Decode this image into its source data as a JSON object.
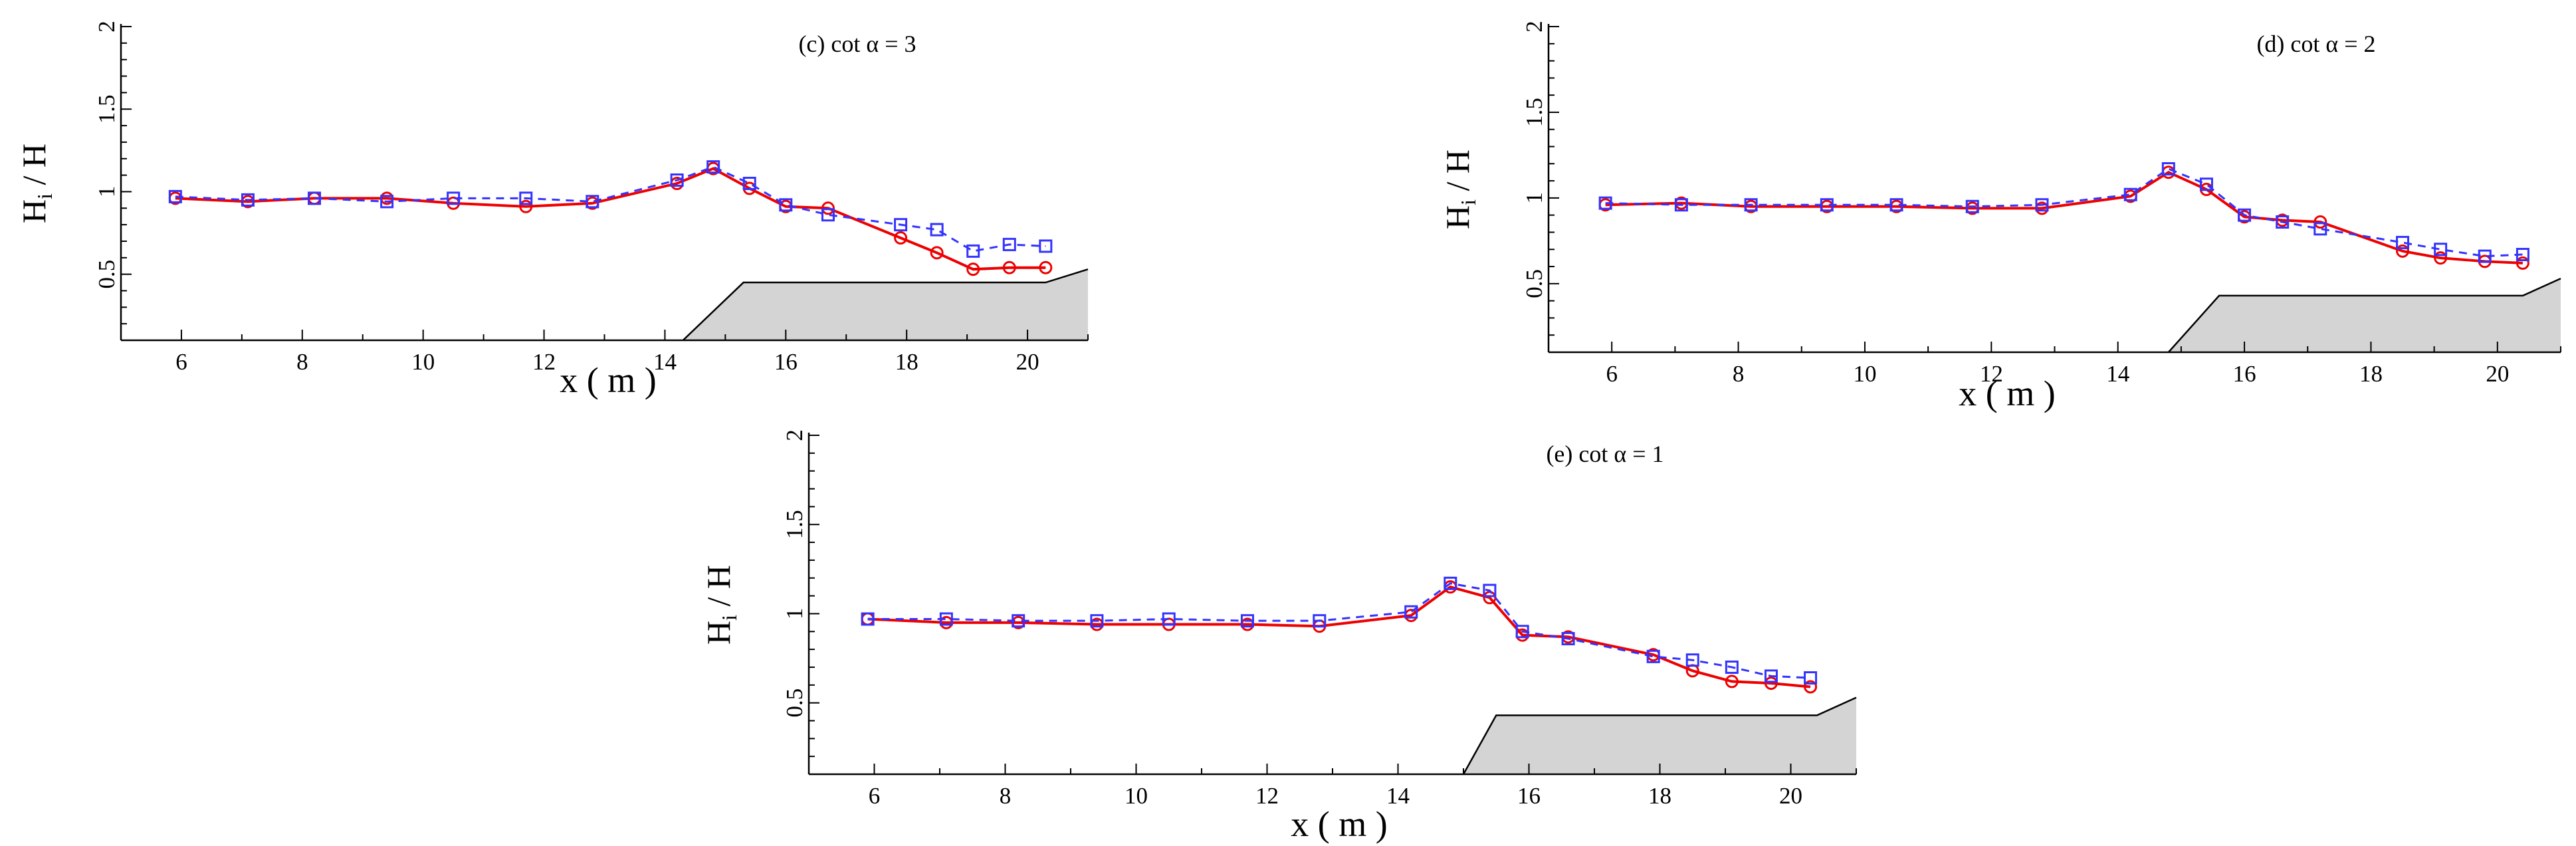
{
  "colors": {
    "red": "#ee0000",
    "blue": "#3333ff",
    "bathymetry_fill": "#d4d4d4",
    "bathymetry_edge": "#000000"
  },
  "chart_data": [
    {
      "type": "line",
      "title": "(c)     cot α = 3",
      "xlabel": "x ( m )",
      "ylabel": {
        "main": "H",
        "subscript": "i",
        "rest": " / H"
      },
      "xlim": [
        5,
        21
      ],
      "ylim": [
        0.1,
        2
      ],
      "xticks": [
        6,
        8,
        10,
        12,
        14,
        16,
        18,
        20
      ],
      "yticks": [
        0.5,
        1,
        1.5,
        2
      ],
      "ytick_labels": [
        "0.5",
        "1",
        "1.5",
        "2"
      ],
      "series": [
        {
          "name": "red-circles",
          "marker": "circle",
          "style": "solid",
          "x": [
            5.9,
            7.1,
            8.2,
            9.4,
            10.5,
            11.7,
            12.8,
            14.2,
            14.8,
            15.4,
            16.0,
            16.7,
            17.9,
            18.5,
            19.1,
            19.7,
            20.3
          ],
          "y": [
            0.96,
            0.94,
            0.96,
            0.96,
            0.93,
            0.91,
            0.93,
            1.05,
            1.14,
            1.02,
            0.91,
            0.9,
            0.72,
            0.63,
            0.53,
            0.54,
            0.54
          ]
        },
        {
          "name": "blue-squares",
          "marker": "square",
          "style": "dashed",
          "x": [
            5.9,
            7.1,
            8.2,
            9.4,
            10.5,
            11.7,
            12.8,
            14.2,
            14.8,
            15.4,
            16.0,
            16.7,
            17.9,
            18.5,
            19.1,
            19.7,
            20.3
          ],
          "y": [
            0.97,
            0.95,
            0.96,
            0.94,
            0.96,
            0.96,
            0.94,
            1.07,
            1.15,
            1.05,
            0.92,
            0.86,
            0.8,
            0.77,
            0.64,
            0.68,
            0.67
          ]
        }
      ],
      "bathymetry": {
        "x": [
          14.3,
          15.3,
          20.3,
          21
        ],
        "y": [
          0.1,
          0.45,
          0.45,
          0.53
        ]
      }
    },
    {
      "type": "line",
      "title": "(d)     cot α = 2",
      "xlabel": "x ( m )",
      "ylabel": {
        "main": "H",
        "subscript": "i",
        "rest": " / H"
      },
      "xlim": [
        5,
        21
      ],
      "ylim": [
        0.1,
        2
      ],
      "xticks": [
        6,
        8,
        10,
        12,
        14,
        16,
        18,
        20
      ],
      "yticks": [
        0.5,
        1,
        1.5,
        2
      ],
      "ytick_labels": [
        "0.5",
        "1",
        "1.5",
        "2"
      ],
      "series": [
        {
          "name": "red-circles",
          "marker": "circle",
          "style": "solid",
          "x": [
            5.9,
            7.1,
            8.2,
            9.4,
            10.5,
            11.7,
            12.8,
            14.2,
            14.8,
            15.4,
            16.0,
            16.6,
            17.2,
            18.5,
            19.1,
            19.8,
            20.4
          ],
          "y": [
            0.96,
            0.97,
            0.95,
            0.95,
            0.95,
            0.94,
            0.94,
            1.01,
            1.15,
            1.05,
            0.89,
            0.87,
            0.86,
            0.69,
            0.65,
            0.63,
            0.62
          ]
        },
        {
          "name": "blue-squares",
          "marker": "square",
          "style": "dashed",
          "x": [
            5.9,
            7.1,
            8.2,
            9.4,
            10.5,
            11.7,
            12.8,
            14.2,
            14.8,
            15.4,
            16.0,
            16.6,
            17.2,
            18.5,
            19.1,
            19.8,
            20.4
          ],
          "y": [
            0.97,
            0.96,
            0.96,
            0.96,
            0.96,
            0.95,
            0.96,
            1.02,
            1.17,
            1.08,
            0.9,
            0.86,
            0.82,
            0.74,
            0.7,
            0.66,
            0.67
          ]
        }
      ],
      "bathymetry": {
        "x": [
          14.8,
          15.6,
          20.4,
          21
        ],
        "y": [
          0.1,
          0.43,
          0.43,
          0.53
        ]
      }
    },
    {
      "type": "line",
      "title": "(e)     cot α = 1",
      "xlabel": "x ( m )",
      "ylabel": {
        "main": "H",
        "subscript": "i",
        "rest": " / H"
      },
      "xlim": [
        5,
        21
      ],
      "ylim": [
        0.1,
        2
      ],
      "xticks": [
        6,
        8,
        10,
        12,
        14,
        16,
        18,
        20
      ],
      "yticks": [
        0.5,
        1,
        1.5,
        2
      ],
      "ytick_labels": [
        "0.5",
        "1",
        "1.5",
        "2"
      ],
      "series": [
        {
          "name": "red-circles",
          "marker": "circle",
          "style": "solid",
          "x": [
            5.9,
            7.1,
            8.2,
            9.4,
            10.5,
            11.7,
            12.8,
            14.2,
            14.8,
            15.4,
            15.9,
            16.6,
            17.9,
            18.5,
            19.1,
            19.7,
            20.3
          ],
          "y": [
            0.97,
            0.95,
            0.95,
            0.94,
            0.94,
            0.94,
            0.93,
            0.99,
            1.15,
            1.09,
            0.88,
            0.87,
            0.77,
            0.68,
            0.62,
            0.61,
            0.59
          ]
        },
        {
          "name": "blue-squares",
          "marker": "square",
          "style": "dashed",
          "x": [
            5.9,
            7.1,
            8.2,
            9.4,
            10.5,
            11.7,
            12.8,
            14.2,
            14.8,
            15.4,
            15.9,
            16.6,
            17.9,
            18.5,
            19.1,
            19.7,
            20.3
          ],
          "y": [
            0.97,
            0.97,
            0.96,
            0.96,
            0.97,
            0.96,
            0.96,
            1.01,
            1.17,
            1.13,
            0.9,
            0.86,
            0.76,
            0.74,
            0.7,
            0.65,
            0.64
          ]
        }
      ],
      "bathymetry": {
        "x": [
          15.0,
          15.5,
          20.4,
          21
        ],
        "y": [
          0.1,
          0.43,
          0.43,
          0.53
        ]
      }
    }
  ]
}
